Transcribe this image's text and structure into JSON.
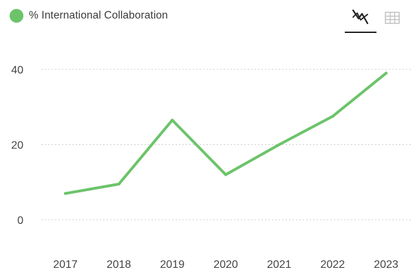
{
  "legend": {
    "label": "% International Collaboration",
    "color": "#6cc36a"
  },
  "view_toggle": {
    "chart_icon": "line-chart-icon",
    "table_icon": "table-grid-icon",
    "active": "chart"
  },
  "chart_data": {
    "type": "line",
    "categories": [
      "2017",
      "2018",
      "2019",
      "2020",
      "2021",
      "2022",
      "2023"
    ],
    "series": [
      {
        "name": "% International Collaboration",
        "values": [
          7,
          9.5,
          26.5,
          12,
          20,
          27.5,
          39
        ],
        "color": "#6cc36a"
      }
    ],
    "y_ticks": [
      0,
      20,
      40
    ],
    "ylim": [
      0,
      40
    ],
    "grid": true,
    "grid_style": "dotted",
    "legend_position": "top-left"
  }
}
